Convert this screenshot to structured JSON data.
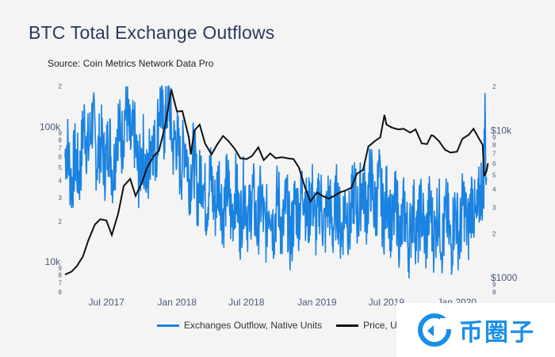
{
  "title": "BTC Total Exchange Outflows",
  "source": "Source: Coin Metrics Network Data Pro",
  "legend": {
    "outflow_label": "Exchanges Outflow, Native Units",
    "price_label": "Price, U"
  },
  "colors": {
    "outflow": "#1a82e0",
    "price": "#111111",
    "axis_text": "#4a5a7a"
  },
  "watermark": {
    "brand": "币圈子"
  },
  "chart_data": {
    "type": "line",
    "title": "BTC Total Exchange Outflows",
    "x_ticks": [
      "Jul 2017",
      "Jan 2018",
      "Jul 2018",
      "Jan 2019",
      "Jul 2019",
      "Jan 2020"
    ],
    "x_range": [
      "2017-03-15",
      "2020-03-25"
    ],
    "left_axis": {
      "scale": "log",
      "range": [
        6000,
        210000
      ],
      "major_ticks": [
        "10k",
        "100k"
      ],
      "minor_ticks": [
        "6",
        "7",
        "8",
        "9",
        "2",
        "3",
        "4",
        "5",
        "6",
        "7",
        "8",
        "9",
        "2"
      ]
    },
    "right_axis": {
      "scale": "log",
      "range": [
        800,
        21000
      ],
      "major_ticks": [
        "$1000",
        "$10k"
      ],
      "minor_ticks": [
        "8",
        "9",
        "2",
        "3",
        "4",
        "5",
        "6",
        "7",
        "8",
        "9",
        "2"
      ]
    },
    "series": [
      {
        "name": "Exchanges Outflow, Native Units",
        "axis": "left",
        "points": [
          [
            "2017-03-15",
            60000
          ],
          [
            "2017-04-01",
            50000
          ],
          [
            "2017-04-15",
            45000
          ],
          [
            "2017-05-01",
            80000
          ],
          [
            "2017-05-15",
            90000
          ],
          [
            "2017-06-01",
            85000
          ],
          [
            "2017-06-15",
            60000
          ],
          [
            "2017-07-01",
            70000
          ],
          [
            "2017-07-15",
            55000
          ],
          [
            "2017-08-01",
            85000
          ],
          [
            "2017-08-15",
            110000
          ],
          [
            "2017-09-01",
            100000
          ],
          [
            "2017-09-15",
            60000
          ],
          [
            "2017-10-01",
            55000
          ],
          [
            "2017-10-15",
            50000
          ],
          [
            "2017-11-01",
            75000
          ],
          [
            "2017-11-15",
            110000
          ],
          [
            "2017-12-01",
            130000
          ],
          [
            "2017-12-15",
            120000
          ],
          [
            "2018-01-01",
            60000
          ],
          [
            "2018-01-15",
            65000
          ],
          [
            "2018-02-01",
            55000
          ],
          [
            "2018-02-15",
            45000
          ],
          [
            "2018-03-01",
            40000
          ],
          [
            "2018-03-15",
            35000
          ],
          [
            "2018-04-01",
            33000
          ],
          [
            "2018-04-15",
            32000
          ],
          [
            "2018-05-01",
            30000
          ],
          [
            "2018-05-15",
            28000
          ],
          [
            "2018-06-01",
            27000
          ],
          [
            "2018-06-15",
            25000
          ],
          [
            "2018-07-01",
            27000
          ],
          [
            "2018-07-15",
            25000
          ],
          [
            "2018-08-01",
            23000
          ],
          [
            "2018-08-15",
            22000
          ],
          [
            "2018-09-01",
            23000
          ],
          [
            "2018-09-15",
            24000
          ],
          [
            "2018-10-01",
            22000
          ],
          [
            "2018-10-15",
            20000
          ],
          [
            "2018-11-01",
            19000
          ],
          [
            "2018-11-15",
            30000
          ],
          [
            "2018-12-01",
            28000
          ],
          [
            "2018-12-15",
            25000
          ],
          [
            "2019-01-01",
            24000
          ],
          [
            "2019-01-15",
            23000
          ],
          [
            "2019-02-01",
            22000
          ],
          [
            "2019-02-15",
            23000
          ],
          [
            "2019-03-01",
            22000
          ],
          [
            "2019-03-15",
            21000
          ],
          [
            "2019-04-01",
            25000
          ],
          [
            "2019-04-15",
            28000
          ],
          [
            "2019-05-01",
            30000
          ],
          [
            "2019-05-15",
            33000
          ],
          [
            "2019-06-01",
            31000
          ],
          [
            "2019-06-15",
            30000
          ],
          [
            "2019-07-01",
            25000
          ],
          [
            "2019-07-15",
            22000
          ],
          [
            "2019-08-01",
            20000
          ],
          [
            "2019-08-15",
            19000
          ],
          [
            "2019-09-01",
            18000
          ],
          [
            "2019-09-15",
            20000
          ],
          [
            "2019-10-01",
            19000
          ],
          [
            "2019-10-15",
            19000
          ],
          [
            "2019-11-01",
            20000
          ],
          [
            "2019-11-15",
            19000
          ],
          [
            "2019-12-01",
            18000
          ],
          [
            "2019-12-15",
            17000
          ],
          [
            "2020-01-01",
            19000
          ],
          [
            "2020-01-15",
            21000
          ],
          [
            "2020-02-01",
            22000
          ],
          [
            "2020-02-15",
            24000
          ],
          [
            "2020-03-01",
            25000
          ],
          [
            "2020-03-10",
            40000
          ],
          [
            "2020-03-14",
            160000
          ],
          [
            "2020-03-18",
            40000
          ]
        ]
      },
      {
        "name": "Price, USD",
        "axis": "right",
        "points": [
          [
            "2017-03-15",
            1050
          ],
          [
            "2017-04-01",
            1100
          ],
          [
            "2017-04-15",
            1200
          ],
          [
            "2017-05-01",
            1400
          ],
          [
            "2017-05-15",
            1800
          ],
          [
            "2017-06-01",
            2300
          ],
          [
            "2017-06-15",
            2500
          ],
          [
            "2017-07-01",
            2450
          ],
          [
            "2017-07-15",
            1950
          ],
          [
            "2017-08-01",
            2750
          ],
          [
            "2017-08-15",
            4200
          ],
          [
            "2017-09-01",
            4700
          ],
          [
            "2017-09-15",
            3600
          ],
          [
            "2017-10-01",
            4400
          ],
          [
            "2017-10-15",
            5600
          ],
          [
            "2017-11-01",
            6700
          ],
          [
            "2017-11-15",
            7300
          ],
          [
            "2017-12-01",
            10800
          ],
          [
            "2017-12-17",
            19100
          ],
          [
            "2018-01-01",
            13500
          ],
          [
            "2018-01-15",
            13600
          ],
          [
            "2018-02-01",
            9000
          ],
          [
            "2018-02-06",
            6900
          ],
          [
            "2018-02-15",
            10000
          ],
          [
            "2018-03-01",
            11000
          ],
          [
            "2018-03-15",
            8200
          ],
          [
            "2018-04-01",
            6900
          ],
          [
            "2018-04-15",
            8000
          ],
          [
            "2018-05-01",
            9200
          ],
          [
            "2018-05-15",
            8500
          ],
          [
            "2018-06-01",
            7500
          ],
          [
            "2018-06-15",
            6500
          ],
          [
            "2018-07-01",
            6400
          ],
          [
            "2018-07-15",
            6700
          ],
          [
            "2018-08-01",
            7700
          ],
          [
            "2018-08-15",
            6300
          ],
          [
            "2018-09-01",
            7000
          ],
          [
            "2018-09-15",
            6500
          ],
          [
            "2018-10-01",
            6600
          ],
          [
            "2018-10-15",
            6500
          ],
          [
            "2018-11-01",
            6400
          ],
          [
            "2018-11-15",
            5600
          ],
          [
            "2018-12-01",
            4100
          ],
          [
            "2018-12-15",
            3300
          ],
          [
            "2019-01-01",
            3800
          ],
          [
            "2019-01-15",
            3600
          ],
          [
            "2019-02-01",
            3450
          ],
          [
            "2019-02-15",
            3600
          ],
          [
            "2019-03-01",
            3800
          ],
          [
            "2019-03-15",
            3900
          ],
          [
            "2019-04-01",
            4100
          ],
          [
            "2019-04-15",
            5100
          ],
          [
            "2019-05-01",
            5400
          ],
          [
            "2019-05-15",
            7800
          ],
          [
            "2019-06-01",
            8500
          ],
          [
            "2019-06-15",
            9000
          ],
          [
            "2019-06-26",
            12800
          ],
          [
            "2019-07-01",
            11000
          ],
          [
            "2019-07-15",
            10500
          ],
          [
            "2019-08-01",
            10200
          ],
          [
            "2019-08-15",
            10300
          ],
          [
            "2019-09-01",
            9700
          ],
          [
            "2019-09-15",
            10200
          ],
          [
            "2019-10-01",
            8200
          ],
          [
            "2019-10-15",
            8100
          ],
          [
            "2019-10-26",
            9300
          ],
          [
            "2019-11-01",
            9200
          ],
          [
            "2019-11-15",
            8500
          ],
          [
            "2019-12-01",
            7400
          ],
          [
            "2019-12-15",
            7100
          ],
          [
            "2020-01-01",
            7200
          ],
          [
            "2020-01-15",
            8800
          ],
          [
            "2020-02-01",
            9400
          ],
          [
            "2020-02-13",
            10300
          ],
          [
            "2020-03-01",
            8600
          ],
          [
            "2020-03-08",
            8000
          ],
          [
            "2020-03-12",
            4900
          ],
          [
            "2020-03-18",
            5300
          ],
          [
            "2020-03-22",
            6000
          ]
        ]
      }
    ]
  }
}
